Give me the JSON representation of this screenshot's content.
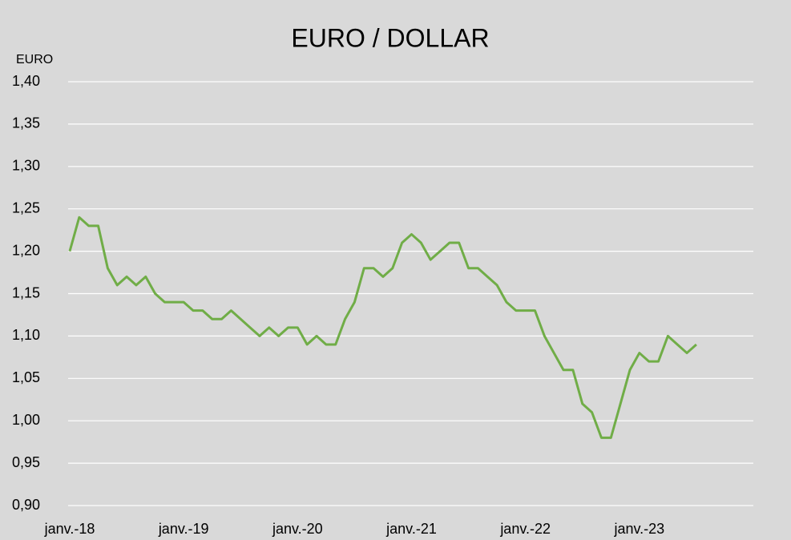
{
  "chart_data": {
    "type": "line",
    "title": "EURO / DOLLAR",
    "y_label": "EURO",
    "x": [
      "2018-01",
      "2018-02",
      "2018-03",
      "2018-04",
      "2018-05",
      "2018-06",
      "2018-07",
      "2018-08",
      "2018-09",
      "2018-10",
      "2018-11",
      "2018-12",
      "2019-01",
      "2019-02",
      "2019-03",
      "2019-04",
      "2019-05",
      "2019-06",
      "2019-07",
      "2019-08",
      "2019-09",
      "2019-10",
      "2019-11",
      "2019-12",
      "2020-01",
      "2020-02",
      "2020-03",
      "2020-04",
      "2020-05",
      "2020-06",
      "2020-07",
      "2020-08",
      "2020-09",
      "2020-10",
      "2020-11",
      "2020-12",
      "2021-01",
      "2021-02",
      "2021-03",
      "2021-04",
      "2021-05",
      "2021-06",
      "2021-07",
      "2021-08",
      "2021-09",
      "2021-10",
      "2021-11",
      "2021-12",
      "2022-01",
      "2022-02",
      "2022-03",
      "2022-04",
      "2022-05",
      "2022-06",
      "2022-07",
      "2022-08",
      "2022-09",
      "2022-10",
      "2022-11",
      "2022-12",
      "2023-01",
      "2023-02",
      "2023-03",
      "2023-04",
      "2023-05",
      "2023-06",
      "2023-07"
    ],
    "series": [
      {
        "name": "EURO",
        "color": "#70ad47",
        "values": [
          1.2,
          1.24,
          1.23,
          1.23,
          1.18,
          1.16,
          1.17,
          1.16,
          1.17,
          1.15,
          1.14,
          1.14,
          1.14,
          1.13,
          1.13,
          1.12,
          1.12,
          1.13,
          1.12,
          1.11,
          1.1,
          1.11,
          1.1,
          1.11,
          1.11,
          1.09,
          1.1,
          1.09,
          1.09,
          1.12,
          1.14,
          1.18,
          1.18,
          1.17,
          1.18,
          1.21,
          1.22,
          1.21,
          1.19,
          1.2,
          1.21,
          1.21,
          1.18,
          1.18,
          1.17,
          1.16,
          1.14,
          1.13,
          1.13,
          1.13,
          1.1,
          1.08,
          1.06,
          1.06,
          1.02,
          1.01,
          0.98,
          0.98,
          1.02,
          1.06,
          1.08,
          1.07,
          1.07,
          1.1,
          1.09,
          1.08,
          1.09
        ]
      }
    ],
    "xlim": [
      "2018-01",
      "2024-01"
    ],
    "xticks": [
      {
        "value": "2018-01",
        "label": "janv.-18"
      },
      {
        "value": "2019-01",
        "label": "janv.-19"
      },
      {
        "value": "2020-01",
        "label": "janv.-20"
      },
      {
        "value": "2021-01",
        "label": "janv.-21"
      },
      {
        "value": "2022-01",
        "label": "janv.-22"
      },
      {
        "value": "2023-01",
        "label": "janv.-23"
      }
    ],
    "ylim": [
      0.9,
      1.4
    ],
    "yticks": [
      {
        "value": 0.9,
        "label": "0,90"
      },
      {
        "value": 0.95,
        "label": "0,95"
      },
      {
        "value": 1.0,
        "label": "1,00"
      },
      {
        "value": 1.05,
        "label": "1,05"
      },
      {
        "value": 1.1,
        "label": "1,10"
      },
      {
        "value": 1.15,
        "label": "1,15"
      },
      {
        "value": 1.2,
        "label": "1,20"
      },
      {
        "value": 1.25,
        "label": "1,25"
      },
      {
        "value": 1.3,
        "label": "1,30"
      },
      {
        "value": 1.35,
        "label": "1,35"
      },
      {
        "value": 1.4,
        "label": "1,40"
      }
    ],
    "grid": true
  }
}
